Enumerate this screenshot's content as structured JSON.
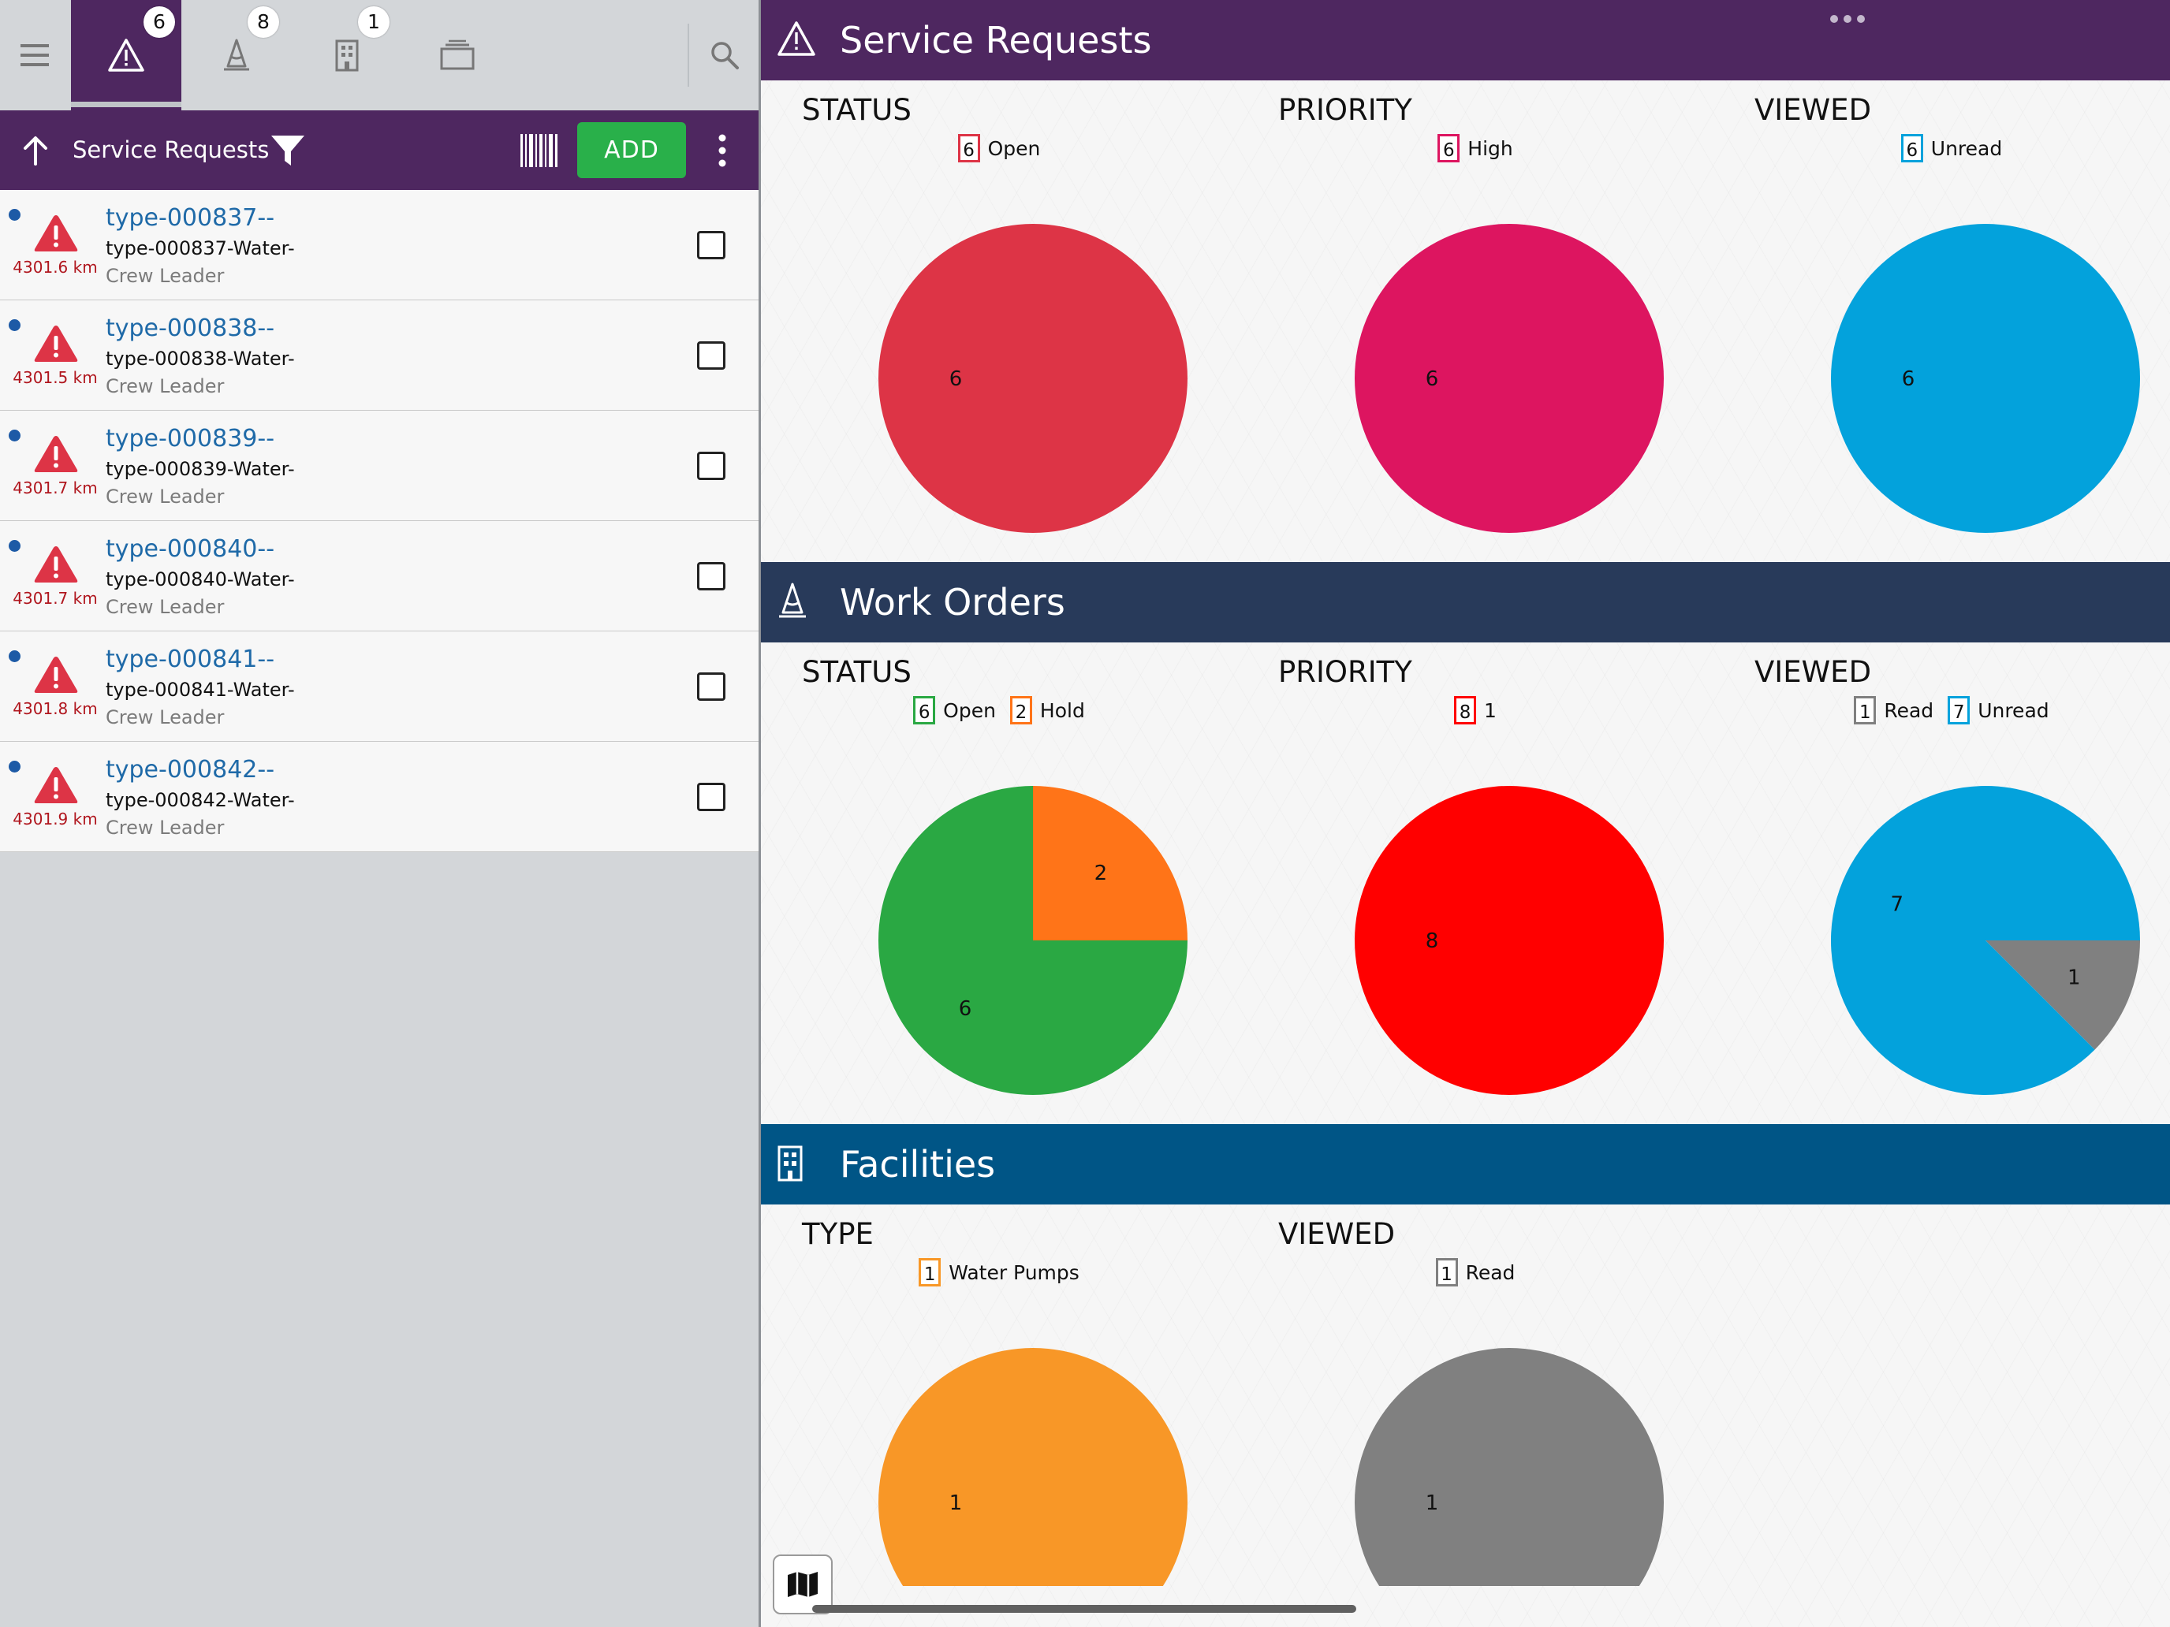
{
  "tabs": {
    "badges": [
      "6",
      "8",
      "1"
    ]
  },
  "list_header": {
    "title": "Service Requests",
    "add_label": "ADD"
  },
  "list_items": [
    {
      "title": "type-000837--",
      "subtitle": "type-000837-Water-",
      "role": "Crew Leader",
      "distance": "4301.6 km"
    },
    {
      "title": "type-000838--",
      "subtitle": "type-000838-Water-",
      "role": "Crew Leader",
      "distance": "4301.5 km"
    },
    {
      "title": "type-000839--",
      "subtitle": "type-000839-Water-",
      "role": "Crew Leader",
      "distance": "4301.7 km"
    },
    {
      "title": "type-000840--",
      "subtitle": "type-000840-Water-",
      "role": "Crew Leader",
      "distance": "4301.7 km"
    },
    {
      "title": "type-000841--",
      "subtitle": "type-000841-Water-",
      "role": "Crew Leader",
      "distance": "4301.8 km"
    },
    {
      "title": "type-000842--",
      "subtitle": "type-000842-Water-",
      "role": "Crew Leader",
      "distance": "4301.9 km"
    }
  ],
  "sections": [
    {
      "title": "Service Requests",
      "color": "#4e2760"
    },
    {
      "title": "Work Orders",
      "color": "#283a5a"
    },
    {
      "title": "Facilities",
      "color": "#005586"
    }
  ],
  "chart_data": [
    {
      "type": "pie",
      "section": "Service Requests",
      "title": "STATUS",
      "slices": [
        {
          "label": "Open",
          "value": 6,
          "color": "#dd3446"
        }
      ]
    },
    {
      "type": "pie",
      "section": "Service Requests",
      "title": "PRIORITY",
      "slices": [
        {
          "label": "High",
          "value": 6,
          "color": "#dd1560"
        }
      ]
    },
    {
      "type": "pie",
      "section": "Service Requests",
      "title": "VIEWED",
      "slices": [
        {
          "label": "Unread",
          "value": 6,
          "color": "#03a2dc"
        }
      ]
    },
    {
      "type": "pie",
      "section": "Work Orders",
      "title": "STATUS",
      "slices": [
        {
          "label": "Open",
          "value": 6,
          "color": "#2aa843"
        },
        {
          "label": "Hold",
          "value": 2,
          "color": "#ff7418"
        }
      ]
    },
    {
      "type": "pie",
      "section": "Work Orders",
      "title": "PRIORITY",
      "slices": [
        {
          "label": "1",
          "value": 8,
          "color": "#ff0000"
        }
      ]
    },
    {
      "type": "pie",
      "section": "Work Orders",
      "title": "VIEWED",
      "slices": [
        {
          "label": "Read",
          "value": 1,
          "color": "#808080"
        },
        {
          "label": "Unread",
          "value": 7,
          "color": "#03a2dc"
        }
      ]
    },
    {
      "type": "pie",
      "section": "Facilities",
      "title": "TYPE",
      "slices": [
        {
          "label": "Water Pumps",
          "value": 1,
          "color": "#f89727"
        }
      ]
    },
    {
      "type": "pie",
      "section": "Facilities",
      "title": "VIEWED",
      "slices": [
        {
          "label": "Read",
          "value": 1,
          "color": "#808080"
        }
      ]
    }
  ]
}
